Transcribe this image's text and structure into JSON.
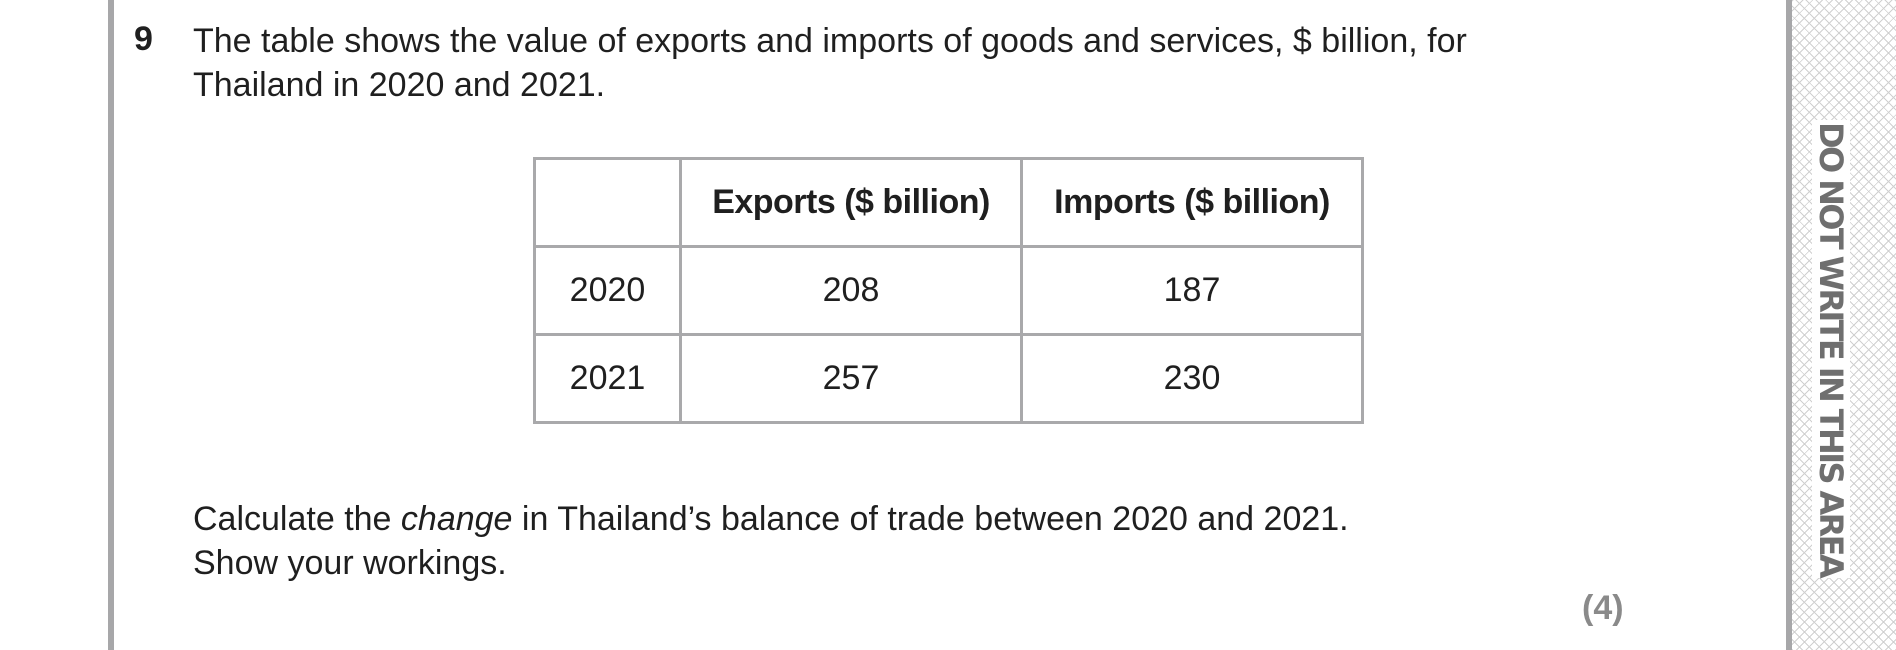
{
  "question": {
    "number": "9",
    "stem_line1": "The table shows the value of exports and imports of goods and services, $ billion, for",
    "stem_line2": "Thailand in 2020 and 2021."
  },
  "table": {
    "headers": [
      "",
      "Exports ($ billion)",
      "Imports ($ billion)"
    ],
    "rows": [
      {
        "year": "2020",
        "exports": "208",
        "imports": "187"
      },
      {
        "year": "2021",
        "exports": "257",
        "imports": "230"
      }
    ]
  },
  "instruction": {
    "line1_before": "Calculate the ",
    "line1_emphasis": "change",
    "line1_after": " in Thailand’s balance of trade between 2020 and 2021.",
    "line2": "Show your workings."
  },
  "marks": "(4)",
  "margin_notice": "DO NOT WRITE IN THIS AREA"
}
